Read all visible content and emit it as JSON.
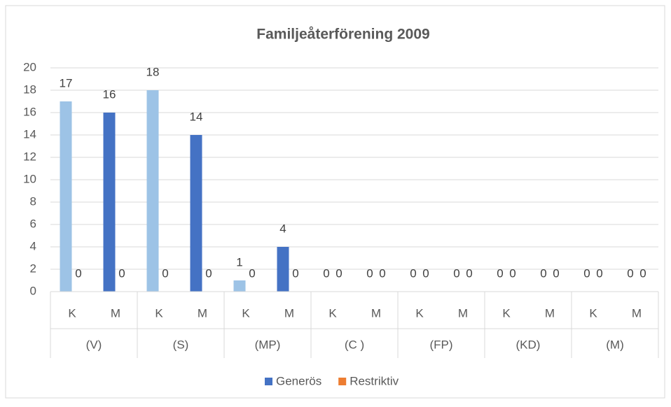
{
  "chart_data": {
    "type": "bar",
    "title": "Familjeåterförening 2009",
    "categories": [
      "K",
      "M",
      "K",
      "M",
      "K",
      "M",
      "K",
      "M",
      "K",
      "M",
      "K",
      "M",
      "K",
      "M"
    ],
    "groups": [
      "(V)",
      "(S)",
      "(MP)",
      "(C )",
      "(FP)",
      "(KD)",
      "(M)"
    ],
    "series": [
      {
        "name": "Generös",
        "color": "#4472c4",
        "point_colors": [
          "#9dc3e6",
          "#4472c4",
          "#9dc3e6",
          "#4472c4",
          "#9dc3e6",
          "#4472c4",
          "#9dc3e6",
          "#4472c4",
          "#9dc3e6",
          "#4472c4",
          "#9dc3e6",
          "#4472c4",
          "#9dc3e6",
          "#4472c4"
        ],
        "values": [
          17,
          16,
          18,
          14,
          1,
          4,
          0,
          0,
          0,
          0,
          0,
          0,
          0,
          0
        ]
      },
      {
        "name": "Restriktiv",
        "color": "#ed7d31",
        "values": [
          0,
          0,
          0,
          0,
          0,
          0,
          0,
          0,
          0,
          0,
          0,
          0,
          0,
          0
        ]
      }
    ],
    "ylim": [
      0,
      20
    ],
    "yticks": [
      0,
      2,
      4,
      6,
      8,
      10,
      12,
      14,
      16,
      18,
      20
    ],
    "grid": true,
    "legend": "bottom"
  }
}
